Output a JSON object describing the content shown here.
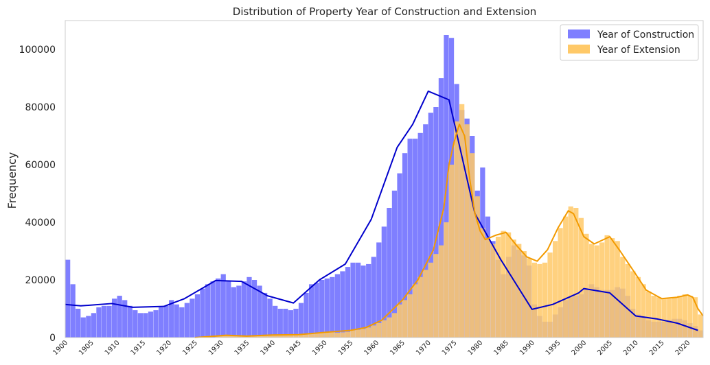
{
  "chart_data": {
    "type": "bar",
    "title": "Distribution of Property Year of Construction and Extension",
    "xlabel": "",
    "ylabel": "Frequency",
    "xlim": [
      1900,
      2023
    ],
    "ylim": [
      0,
      110000
    ],
    "x_ticks": [
      "1900",
      "1905",
      "1910",
      "1915",
      "1920",
      "1925",
      "1930",
      "1935",
      "1940",
      "1945",
      "1950",
      "1955",
      "1960",
      "1965",
      "1970",
      "1975",
      "1980",
      "1985",
      "1990",
      "1995",
      "2000",
      "2005",
      "2010",
      "2015",
      "2020"
    ],
    "y_ticks": [
      "0",
      "20000",
      "40000",
      "60000",
      "80000",
      "100000"
    ],
    "grid": false,
    "legend_position": "top-right",
    "series": [
      {
        "name": "Year of Construction",
        "color": "#7f7fff",
        "kde_color": "#0000cc",
        "bins": [
          [
            1900,
            27000
          ],
          [
            1901,
            18500
          ],
          [
            1902,
            10000
          ],
          [
            1903,
            7000
          ],
          [
            1904,
            7500
          ],
          [
            1905,
            8500
          ],
          [
            1906,
            10500
          ],
          [
            1907,
            11000
          ],
          [
            1908,
            11000
          ],
          [
            1909,
            13500
          ],
          [
            1910,
            14500
          ],
          [
            1911,
            13000
          ],
          [
            1912,
            11000
          ],
          [
            1913,
            9500
          ],
          [
            1914,
            8500
          ],
          [
            1915,
            8500
          ],
          [
            1916,
            9000
          ],
          [
            1917,
            9500
          ],
          [
            1918,
            10500
          ],
          [
            1919,
            11000
          ],
          [
            1920,
            13000
          ],
          [
            1921,
            11500
          ],
          [
            1922,
            10500
          ],
          [
            1923,
            12000
          ],
          [
            1924,
            13500
          ],
          [
            1925,
            15000
          ],
          [
            1926,
            17000
          ],
          [
            1927,
            18500
          ],
          [
            1928,
            19500
          ],
          [
            1929,
            20500
          ],
          [
            1930,
            22000
          ],
          [
            1931,
            19500
          ],
          [
            1932,
            17500
          ],
          [
            1933,
            18000
          ],
          [
            1934,
            19500
          ],
          [
            1935,
            21000
          ],
          [
            1936,
            20000
          ],
          [
            1937,
            18000
          ],
          [
            1938,
            15500
          ],
          [
            1939,
            13500
          ],
          [
            1940,
            11000
          ],
          [
            1941,
            10000
          ],
          [
            1942,
            10000
          ],
          [
            1943,
            9500
          ],
          [
            1944,
            10000
          ],
          [
            1945,
            12000
          ],
          [
            1946,
            15500
          ],
          [
            1947,
            18500
          ],
          [
            1948,
            19000
          ],
          [
            1949,
            20000
          ],
          [
            1950,
            20500
          ],
          [
            1951,
            21000
          ],
          [
            1952,
            22000
          ],
          [
            1953,
            23000
          ],
          [
            1954,
            24500
          ],
          [
            1955,
            26000
          ],
          [
            1956,
            26000
          ],
          [
            1957,
            25000
          ],
          [
            1958,
            25500
          ],
          [
            1959,
            28000
          ],
          [
            1960,
            33000
          ],
          [
            1961,
            38500
          ],
          [
            1962,
            45000
          ],
          [
            1963,
            51000
          ],
          [
            1964,
            57000
          ],
          [
            1965,
            64000
          ],
          [
            1966,
            69000
          ],
          [
            1967,
            69000
          ],
          [
            1968,
            71000
          ],
          [
            1969,
            74000
          ],
          [
            1970,
            78000
          ],
          [
            1971,
            80000
          ],
          [
            1972,
            90000
          ],
          [
            1973,
            105000
          ],
          [
            1974,
            104000
          ],
          [
            1975,
            88000
          ],
          [
            1976,
            79000
          ],
          [
            1977,
            76000
          ],
          [
            1978,
            70000
          ],
          [
            1979,
            51000
          ],
          [
            1980,
            59000
          ],
          [
            1981,
            42000
          ],
          [
            1982,
            33500
          ],
          [
            1983,
            27000
          ],
          [
            1984,
            22000
          ],
          [
            1985,
            28000
          ],
          [
            1986,
            32000
          ],
          [
            1987,
            30500
          ],
          [
            1988,
            28500
          ],
          [
            1989,
            25000
          ],
          [
            1990,
            11500
          ],
          [
            1991,
            7500
          ],
          [
            1992,
            5500
          ],
          [
            1993,
            5500
          ],
          [
            1994,
            8000
          ],
          [
            1995,
            10500
          ],
          [
            1996,
            13000
          ],
          [
            1997,
            14000
          ],
          [
            1998,
            14500
          ],
          [
            1999,
            15000
          ],
          [
            2000,
            17000
          ],
          [
            2001,
            18500
          ],
          [
            2002,
            17500
          ],
          [
            2003,
            16500
          ],
          [
            2004,
            16500
          ],
          [
            2005,
            16500
          ],
          [
            2006,
            17500
          ],
          [
            2007,
            17000
          ],
          [
            2008,
            14500
          ],
          [
            2009,
            10000
          ],
          [
            2010,
            8000
          ],
          [
            2011,
            7000
          ],
          [
            2012,
            6000
          ],
          [
            2013,
            5500
          ],
          [
            2014,
            5500
          ],
          [
            2015,
            5500
          ],
          [
            2016,
            6000
          ],
          [
            2017,
            6500
          ],
          [
            2018,
            6500
          ],
          [
            2019,
            6000
          ],
          [
            2020,
            5000
          ],
          [
            2021,
            4000
          ],
          [
            2022,
            2500
          ]
        ],
        "kde": [
          [
            1900,
            11500
          ],
          [
            1903,
            11000
          ],
          [
            1909,
            11800
          ],
          [
            1913,
            10500
          ],
          [
            1919,
            10800
          ],
          [
            1923,
            13500
          ],
          [
            1929,
            19800
          ],
          [
            1934,
            19500
          ],
          [
            1939,
            14500
          ],
          [
            1944,
            12000
          ],
          [
            1949,
            20000
          ],
          [
            1954,
            25500
          ],
          [
            1959,
            41000
          ],
          [
            1964,
            66000
          ],
          [
            1967,
            74000
          ],
          [
            1970,
            85500
          ],
          [
            1974,
            82500
          ],
          [
            1979,
            43000
          ],
          [
            1984,
            27000
          ],
          [
            1990,
            9800
          ],
          [
            1994,
            11500
          ],
          [
            1999,
            15500
          ],
          [
            2000,
            17000
          ],
          [
            2005,
            15500
          ],
          [
            2010,
            7500
          ],
          [
            2014,
            6500
          ],
          [
            2018,
            5000
          ],
          [
            2022,
            2500
          ]
        ]
      },
      {
        "name": "Year of Extension",
        "color": "#ffc968",
        "kde_color": "#f29a00",
        "bins": [
          [
            1929,
            600
          ],
          [
            1930,
            800
          ],
          [
            1931,
            600
          ],
          [
            1932,
            500
          ],
          [
            1933,
            500
          ],
          [
            1934,
            500
          ],
          [
            1935,
            500
          ],
          [
            1936,
            600
          ],
          [
            1937,
            600
          ],
          [
            1938,
            700
          ],
          [
            1939,
            800
          ],
          [
            1940,
            900
          ],
          [
            1941,
            900
          ],
          [
            1942,
            900
          ],
          [
            1943,
            900
          ],
          [
            1944,
            1000
          ],
          [
            1945,
            1100
          ],
          [
            1946,
            1200
          ],
          [
            1947,
            1300
          ],
          [
            1948,
            1500
          ],
          [
            1949,
            1700
          ],
          [
            1950,
            2000
          ],
          [
            1951,
            1800
          ],
          [
            1952,
            1700
          ],
          [
            1953,
            1800
          ],
          [
            1954,
            2000
          ],
          [
            1955,
            2500
          ],
          [
            1956,
            2700
          ],
          [
            1957,
            3000
          ],
          [
            1958,
            3500
          ],
          [
            1959,
            4200
          ],
          [
            1960,
            5000
          ],
          [
            1961,
            6000
          ],
          [
            1962,
            7000
          ],
          [
            1963,
            8500
          ],
          [
            1964,
            11500
          ],
          [
            1965,
            13000
          ],
          [
            1966,
            15000
          ],
          [
            1967,
            18500
          ],
          [
            1968,
            21000
          ],
          [
            1969,
            23500
          ],
          [
            1970,
            26000
          ],
          [
            1971,
            29000
          ],
          [
            1972,
            32000
          ],
          [
            1973,
            40000
          ],
          [
            1974,
            60000
          ],
          [
            1975,
            75000
          ],
          [
            1976,
            81000
          ],
          [
            1977,
            74000
          ],
          [
            1978,
            64000
          ],
          [
            1979,
            49000
          ],
          [
            1980,
            38000
          ],
          [
            1981,
            34500
          ],
          [
            1982,
            32500
          ],
          [
            1983,
            35000
          ],
          [
            1984,
            37000
          ],
          [
            1985,
            36500
          ],
          [
            1986,
            34000
          ],
          [
            1987,
            32500
          ],
          [
            1988,
            30000
          ],
          [
            1989,
            27500
          ],
          [
            1990,
            26000
          ],
          [
            1991,
            25500
          ],
          [
            1992,
            26000
          ],
          [
            1993,
            29500
          ],
          [
            1994,
            33500
          ],
          [
            1995,
            38000
          ],
          [
            1996,
            42000
          ],
          [
            1997,
            45500
          ],
          [
            1998,
            45000
          ],
          [
            1999,
            41500
          ],
          [
            2000,
            36000
          ],
          [
            2001,
            32500
          ],
          [
            2002,
            32000
          ],
          [
            2003,
            33000
          ],
          [
            2004,
            35500
          ],
          [
            2005,
            34500
          ],
          [
            2006,
            33500
          ],
          [
            2007,
            28000
          ],
          [
            2008,
            25500
          ],
          [
            2009,
            23000
          ],
          [
            2010,
            21000
          ],
          [
            2011,
            18500
          ],
          [
            2012,
            16000
          ],
          [
            2013,
            14500
          ],
          [
            2014,
            14000
          ],
          [
            2015,
            13500
          ],
          [
            2016,
            13500
          ],
          [
            2017,
            14000
          ],
          [
            2018,
            14500
          ],
          [
            2019,
            15000
          ],
          [
            2020,
            14500
          ],
          [
            2021,
            14000
          ],
          [
            2022,
            8000
          ]
        ],
        "kde": [
          [
            1925,
            0
          ],
          [
            1929,
            500
          ],
          [
            1931,
            800
          ],
          [
            1935,
            500
          ],
          [
            1940,
            900
          ],
          [
            1945,
            1000
          ],
          [
            1950,
            1800
          ],
          [
            1955,
            2500
          ],
          [
            1958,
            3500
          ],
          [
            1961,
            6000
          ],
          [
            1965,
            13000
          ],
          [
            1968,
            20000
          ],
          [
            1971,
            30500
          ],
          [
            1973,
            45000
          ],
          [
            1974,
            60000
          ],
          [
            1975,
            68000
          ],
          [
            1976,
            74000
          ],
          [
            1977,
            70000
          ],
          [
            1978,
            55000
          ],
          [
            1979,
            43000
          ],
          [
            1980,
            37000
          ],
          [
            1981,
            34000
          ],
          [
            1983,
            35500
          ],
          [
            1985,
            36500
          ],
          [
            1987,
            32000
          ],
          [
            1989,
            28000
          ],
          [
            1991,
            26500
          ],
          [
            1993,
            30500
          ],
          [
            1995,
            38000
          ],
          [
            1997,
            44000
          ],
          [
            1998,
            43000
          ],
          [
            2000,
            35000
          ],
          [
            2002,
            32500
          ],
          [
            2005,
            35000
          ],
          [
            2007,
            30000
          ],
          [
            2010,
            22000
          ],
          [
            2012,
            16500
          ],
          [
            2015,
            13500
          ],
          [
            2018,
            14000
          ],
          [
            2020,
            14800
          ],
          [
            2021,
            14000
          ],
          [
            2022,
            10000
          ],
          [
            2023,
            7500
          ]
        ]
      }
    ]
  }
}
